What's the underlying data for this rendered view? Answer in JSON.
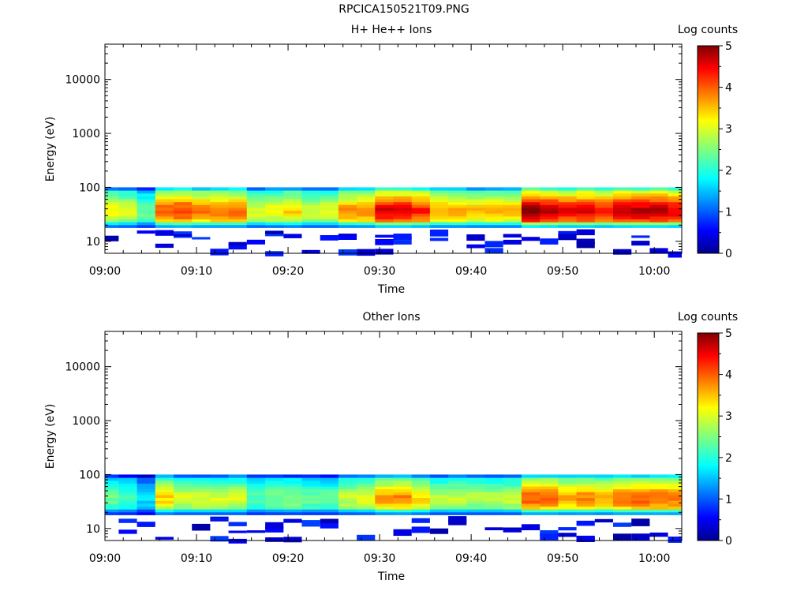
{
  "figure": {
    "title": "RPCICA150521T09.PNG"
  },
  "chart_data": [
    {
      "type": "heatmap",
      "title": "H+ He++ Ions",
      "xlabel": "Time",
      "ylabel": "Energy (eV)",
      "x_ticks": [
        "09:00",
        "09:10",
        "09:20",
        "09:30",
        "09:40",
        "09:50",
        "10:00"
      ],
      "x_range_minutes": [
        0,
        63
      ],
      "y_scale": "log",
      "y_ticks": [
        10,
        100,
        1000,
        10000
      ],
      "y_range": [
        6,
        45000
      ],
      "colorbar": {
        "label": "Log counts",
        "range": [
          0,
          5
        ],
        "ticks": [
          0,
          1,
          2,
          3,
          4,
          5
        ]
      },
      "data_extent_minutes": [
        0,
        63
      ],
      "energy_upper_eV": 100,
      "background": "no data (white) above ~100 eV",
      "column_time_minutes": [
        0,
        1.5,
        3.5,
        5.5,
        7.5,
        9.5,
        11.5,
        13.5,
        15.5,
        17.5,
        19.5,
        21.5,
        23.5,
        25.5,
        27.5,
        29.5,
        31.5,
        33.5,
        35.5,
        37.5,
        39.5,
        41.5,
        43.5,
        45.5,
        47.5,
        49.5,
        51.5,
        53.5,
        55.5,
        57.5,
        59.5,
        61.5
      ],
      "column_peak_log_counts": [
        3.2,
        3.0,
        2.4,
        4.0,
        4.2,
        3.9,
        3.9,
        3.9,
        3.0,
        3.2,
        3.4,
        3.0,
        3.0,
        3.7,
        3.8,
        4.6,
        4.6,
        4.3,
        3.7,
        3.7,
        3.5,
        3.5,
        3.5,
        5.0,
        4.8,
        4.5,
        4.6,
        4.4,
        4.7,
        4.8,
        4.8,
        4.6
      ],
      "low_energy_fringe_eV": [
        6,
        20
      ],
      "colors": {
        "min": "#00008f",
        "max": "#800000"
      }
    },
    {
      "type": "heatmap",
      "title": "Other Ions",
      "xlabel": "Time",
      "ylabel": "Energy (eV)",
      "x_ticks": [
        "09:00",
        "09:10",
        "09:20",
        "09:30",
        "09:40",
        "09:50",
        "10:00"
      ],
      "x_range_minutes": [
        0,
        63
      ],
      "y_scale": "log",
      "y_ticks": [
        10,
        100,
        1000,
        10000
      ],
      "y_range": [
        6,
        45000
      ],
      "colorbar": {
        "label": "Log counts",
        "range": [
          0,
          5
        ],
        "ticks": [
          0,
          1,
          2,
          3,
          4,
          5
        ]
      },
      "data_extent_minutes": [
        0,
        63
      ],
      "energy_upper_eV": 100,
      "background": "no data (white) above ~100 eV",
      "column_time_minutes": [
        0,
        1.5,
        3.5,
        5.5,
        7.5,
        9.5,
        11.5,
        13.5,
        15.5,
        17.5,
        19.5,
        21.5,
        23.5,
        25.5,
        27.5,
        29.5,
        31.5,
        33.5,
        35.5,
        37.5,
        39.5,
        41.5,
        43.5,
        45.5,
        47.5,
        49.5,
        51.5,
        53.5,
        55.5,
        57.5,
        59.5,
        61.5
      ],
      "column_peak_log_counts": [
        2.4,
        2.2,
        1.6,
        3.4,
        3.0,
        3.0,
        3.0,
        3.0,
        2.3,
        2.5,
        2.6,
        2.4,
        2.4,
        2.9,
        3.0,
        3.7,
        3.8,
        3.4,
        2.8,
        2.9,
        2.8,
        2.8,
        2.9,
        4.0,
        4.0,
        3.7,
        3.8,
        3.6,
        4.0,
        4.0,
        4.0,
        3.9
      ],
      "low_energy_fringe_eV": [
        6,
        20
      ],
      "colors": {
        "min": "#00008f",
        "max": "#800000"
      }
    }
  ]
}
